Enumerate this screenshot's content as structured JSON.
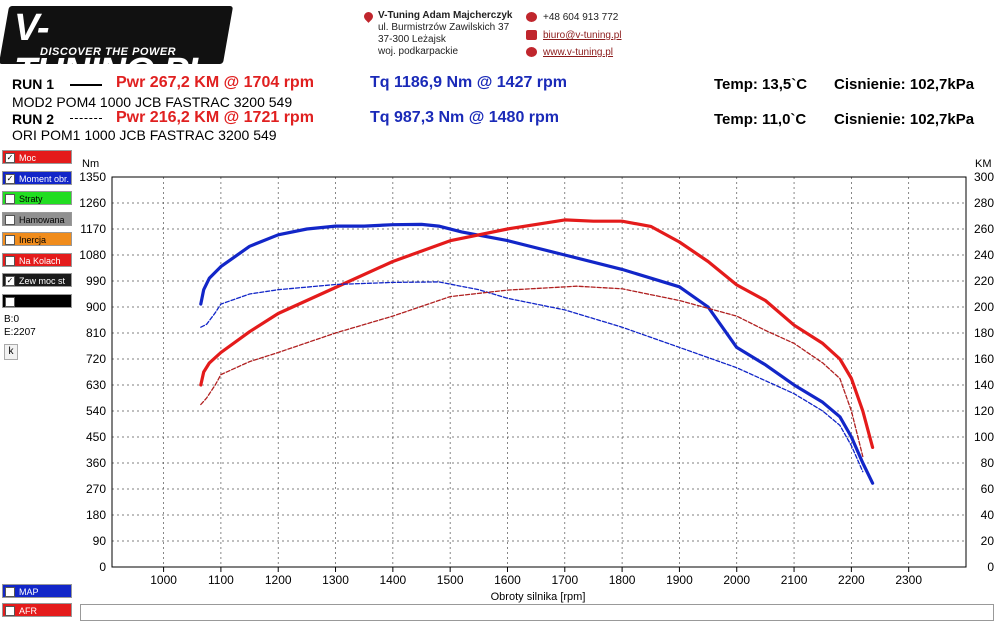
{
  "header": {
    "logo_text": "V-TUNING.PL",
    "logo_tagline": "DISCOVER THE POWER",
    "company": "V-Tuning Adam Majcherczyk",
    "address1": "ul. Burmistrzów Zawilskich 37",
    "address2": "37-300 Leżajsk",
    "address3": "woj. podkarpackie",
    "phone": "+48 604 913 772",
    "email": "biuro@v-tuning.pl",
    "website": "www.v-tuning.pl",
    "brand_red": "#c0262d"
  },
  "runs": [
    {
      "label": "RUN 1",
      "pwr": "Pwr  267,2 KM @ 1704 rpm",
      "tq": "Tq 1186,9 Nm @ 1427 rpm",
      "temp": "Temp: 13,5`C",
      "pressure": "Cisnienie: 102,7kPa",
      "desc": "MOD2 POM4 1000 JCB FASTRAC 3200 549"
    },
    {
      "label": "RUN 2",
      "pwr": "Pwr  216,2 KM @ 1721 rpm",
      "tq": "Tq 987,3 Nm @ 1480 rpm",
      "temp": "Temp: 11,0`C",
      "pressure": "Cisnienie: 102,7kPa",
      "desc": "ORI POM1 1000 JCB FASTRAC 3200 549"
    }
  ],
  "sidebar": {
    "checkboxes": [
      {
        "label": "Moc",
        "checked": true,
        "color": "#e41b1b"
      },
      {
        "label": "Moment obr.",
        "checked": true,
        "color": "#1226c8"
      },
      {
        "label": "Straty",
        "checked": false,
        "color": "#22dd22"
      },
      {
        "label": "Hamowana",
        "checked": false,
        "color": "#909090"
      },
      {
        "label": "Inercja",
        "checked": false,
        "color": "#f08c1c"
      },
      {
        "label": "Na Kolach",
        "checked": false,
        "color": "#e41b1b"
      },
      {
        "label": "Zew moc st",
        "checked": true,
        "color": "#1a1a1a"
      },
      {
        "label": "",
        "checked": false,
        "color": "#000000"
      }
    ],
    "b_value": "B:0",
    "e_value": "E:2207",
    "k_button": "k",
    "bottom_checkboxes": [
      {
        "label": "MAP",
        "checked": false,
        "color": "#1226c8"
      },
      {
        "label": "AFR",
        "checked": false,
        "color": "#e41b1b"
      }
    ]
  },
  "chart_data": {
    "type": "line",
    "xlabel": "Obroty silnika [rpm]",
    "ylabel_left": "Nm",
    "ylabel_right": "KM",
    "xlim": [
      910,
      2400
    ],
    "ylim_left": [
      0,
      1350
    ],
    "ylim_right": [
      0,
      300
    ],
    "x_ticks": [
      1000,
      1100,
      1200,
      1300,
      1400,
      1500,
      1600,
      1700,
      1800,
      1900,
      2000,
      2100,
      2200,
      2300
    ],
    "y_ticks_left": [
      0,
      90,
      180,
      270,
      360,
      450,
      540,
      630,
      720,
      810,
      900,
      990,
      1080,
      1170,
      1260,
      1350
    ],
    "y_ticks_right": [
      0,
      20,
      40,
      60,
      80,
      100,
      120,
      140,
      160,
      180,
      200,
      220,
      240,
      260,
      280,
      300
    ],
    "grid": true,
    "series": [
      {
        "name": "RUN 1 Moment",
        "axis": "left",
        "color": "#1226c8",
        "style": "solid",
        "x": [
          1065,
          1070,
          1080,
          1100,
          1150,
          1200,
          1250,
          1300,
          1350,
          1400,
          1450,
          1480,
          1520,
          1600,
          1700,
          1800,
          1900,
          1950,
          2000,
          2050,
          2100,
          2150,
          2180,
          2200,
          2220,
          2237
        ],
        "y": [
          910,
          960,
          1000,
          1040,
          1110,
          1150,
          1170,
          1180,
          1180,
          1185,
          1186,
          1180,
          1160,
          1130,
          1080,
          1030,
          970,
          900,
          760,
          700,
          630,
          570,
          520,
          450,
          360,
          290
        ]
      },
      {
        "name": "RUN 1 Moc",
        "axis": "right",
        "color": "#e41b1b",
        "style": "solid",
        "x": [
          1065,
          1070,
          1080,
          1100,
          1150,
          1200,
          1300,
          1400,
          1500,
          1600,
          1700,
          1750,
          1800,
          1850,
          1900,
          1950,
          2000,
          2050,
          2100,
          2150,
          2180,
          2200,
          2220,
          2237
        ],
        "y": [
          140,
          150,
          157,
          165,
          181,
          195,
          215,
          235,
          251,
          260,
          267,
          266,
          266,
          262,
          250,
          235,
          217,
          205,
          186,
          172,
          160,
          145,
          120,
          92
        ]
      },
      {
        "name": "RUN 2 Moment",
        "axis": "left",
        "color": "#1226c8",
        "style": "dashed",
        "x": [
          1065,
          1075,
          1090,
          1100,
          1150,
          1200,
          1300,
          1400,
          1480,
          1550,
          1600,
          1700,
          1800,
          1900,
          2000,
          2100,
          2150,
          2180,
          2200,
          2220
        ],
        "y": [
          830,
          840,
          880,
          910,
          945,
          960,
          978,
          985,
          987,
          960,
          930,
          890,
          830,
          760,
          690,
          600,
          540,
          490,
          420,
          330
        ]
      },
      {
        "name": "RUN 2 Moc",
        "axis": "right",
        "color": "#b02020",
        "style": "dashed",
        "x": [
          1065,
          1075,
          1090,
          1100,
          1150,
          1200,
          1300,
          1400,
          1500,
          1600,
          1721,
          1800,
          1900,
          2000,
          2050,
          2100,
          2150,
          2180,
          2200,
          2220
        ],
        "y": [
          125,
          130,
          140,
          148,
          158,
          165,
          180,
          193,
          208,
          213,
          216,
          214,
          205,
          193,
          182,
          172,
          157,
          145,
          120,
          85
        ]
      }
    ]
  }
}
